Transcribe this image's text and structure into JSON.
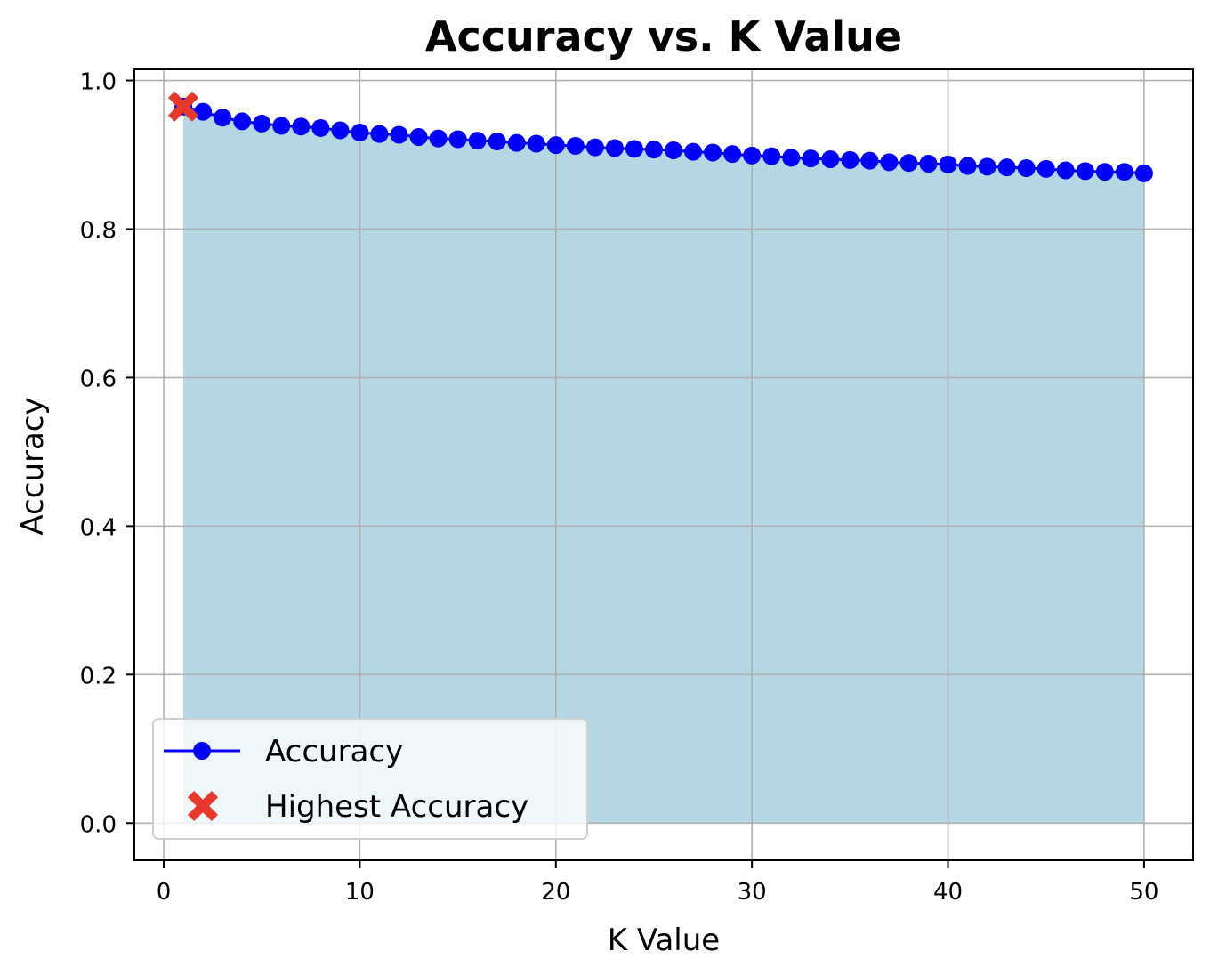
{
  "chart_data": {
    "type": "line",
    "title": "Accuracy vs. K Value",
    "xlabel": "K Value",
    "ylabel": "Accuracy",
    "xlim": [
      -1.5,
      52.5
    ],
    "ylim": [
      -0.05,
      1.015
    ],
    "xticks": [
      0,
      10,
      20,
      30,
      40,
      50
    ],
    "xtick_labels": [
      "0",
      "10",
      "20",
      "30",
      "40",
      "50"
    ],
    "yticks": [
      0.0,
      0.2,
      0.4,
      0.6,
      0.8,
      1.0
    ],
    "ytick_labels": [
      "0.0",
      "0.2",
      "0.4",
      "0.6",
      "0.8",
      "1.0"
    ],
    "grid": true,
    "legend_position": "lower-left",
    "x": [
      1,
      2,
      3,
      4,
      5,
      6,
      7,
      8,
      9,
      10,
      11,
      12,
      13,
      14,
      15,
      16,
      17,
      18,
      19,
      20,
      21,
      22,
      23,
      24,
      25,
      26,
      27,
      28,
      29,
      30,
      31,
      32,
      33,
      34,
      35,
      36,
      37,
      38,
      39,
      40,
      41,
      42,
      43,
      44,
      45,
      46,
      47,
      48,
      49,
      50
    ],
    "series": [
      {
        "name": "Accuracy",
        "color": "#0000ff",
        "fill_color": "#b5d6e3",
        "values": [
          0.965,
          0.958,
          0.95,
          0.945,
          0.942,
          0.939,
          0.938,
          0.936,
          0.933,
          0.93,
          0.928,
          0.927,
          0.924,
          0.922,
          0.921,
          0.919,
          0.918,
          0.916,
          0.915,
          0.913,
          0.912,
          0.91,
          0.909,
          0.908,
          0.907,
          0.906,
          0.904,
          0.903,
          0.901,
          0.899,
          0.898,
          0.896,
          0.895,
          0.894,
          0.893,
          0.892,
          0.89,
          0.889,
          0.888,
          0.887,
          0.885,
          0.884,
          0.883,
          0.882,
          0.881,
          0.879,
          0.878,
          0.877,
          0.877,
          0.875
        ]
      },
      {
        "name": "Highest Accuracy",
        "color": "#e8372b",
        "marker": "X",
        "points": [
          {
            "x": 1,
            "y": 0.965
          }
        ]
      }
    ]
  }
}
